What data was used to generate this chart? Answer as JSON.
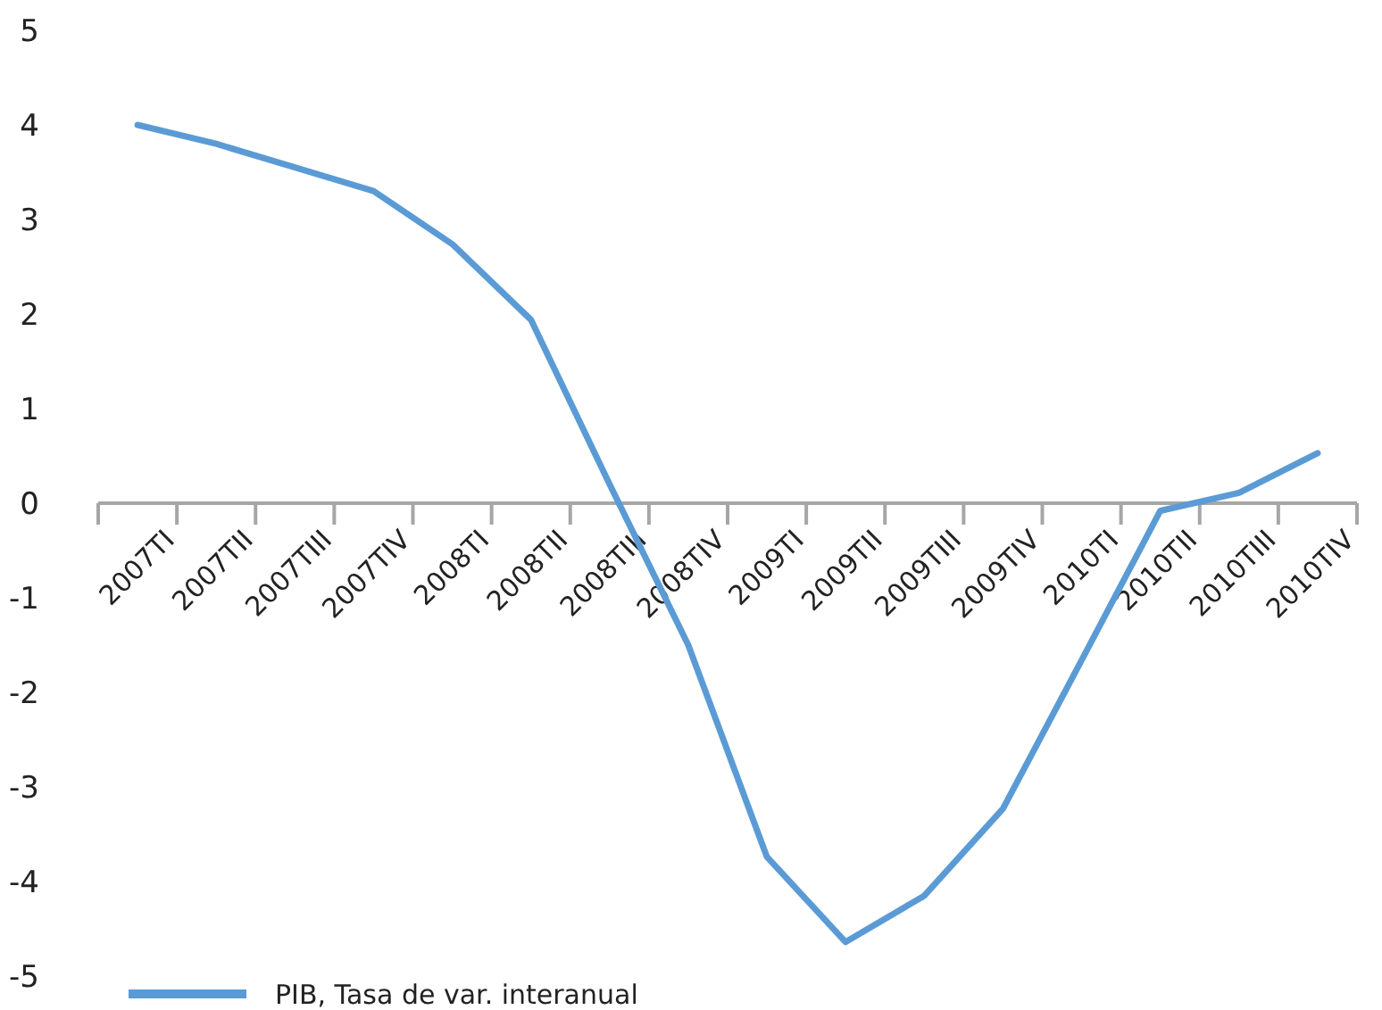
{
  "chart_data": {
    "type": "line",
    "categories": [
      "2007TI",
      "2007TII",
      "2007TIII",
      "2007TIV",
      "2008TI",
      "2008TII",
      "2008TIII",
      "2008TIV",
      "2009TI",
      "2009TII",
      "2009TIII",
      "2009TIV",
      "2010TI",
      "2010TII",
      "2010TIII",
      "2010TIV"
    ],
    "series": [
      {
        "name": "PIB, Tasa de var. interanual",
        "color": "#5b9bd5",
        "values": [
          4.0,
          3.8,
          3.55,
          3.3,
          2.74,
          1.94,
          0.2,
          -1.5,
          -3.74,
          -4.64,
          -4.15,
          -3.23,
          -1.66,
          -0.08,
          0.11,
          0.53
        ]
      }
    ],
    "ylim": [
      -5,
      5
    ],
    "yticks": [
      -5,
      -4,
      -3,
      -2,
      -1,
      0,
      1,
      2,
      3,
      4,
      5
    ],
    "grid": false,
    "legend": "bottom left",
    "marker": "none",
    "line_style": "solid"
  }
}
